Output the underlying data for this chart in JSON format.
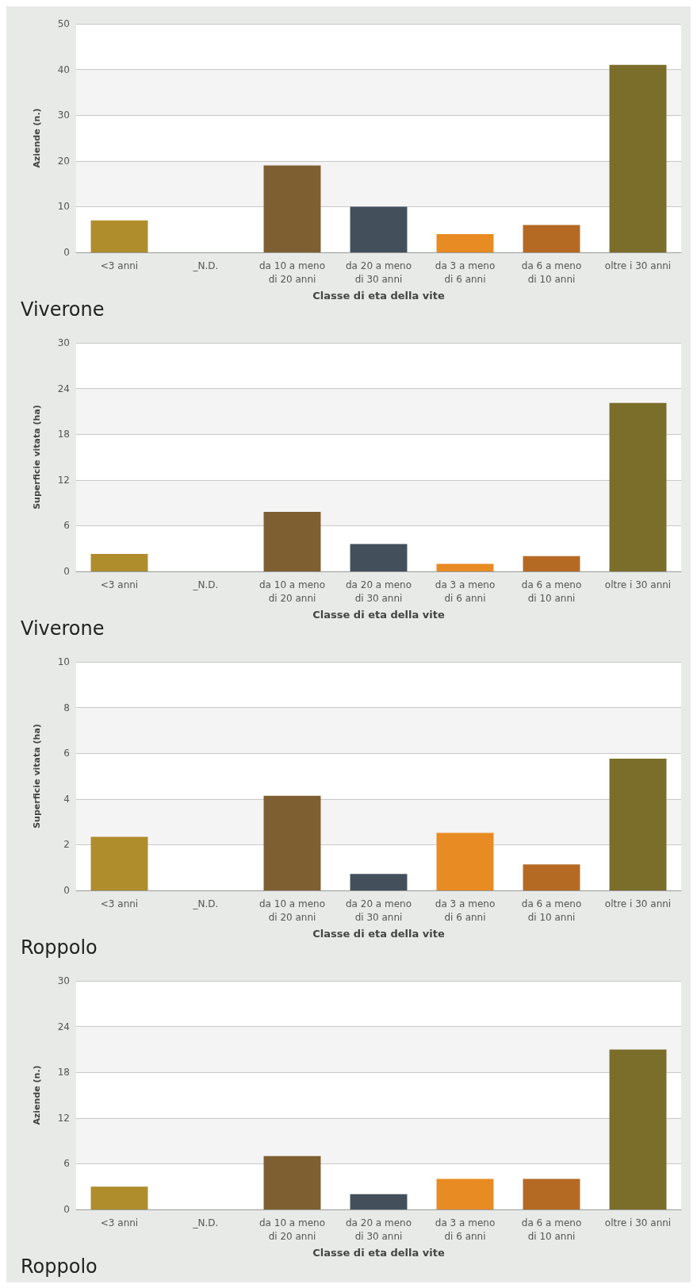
{
  "chart_data": [
    {
      "type": "bar",
      "xlabel": "Classe di eta della vite",
      "ylabel": "Aziende (n.)",
      "annotations": [
        "Viverone"
      ],
      "categories": [
        "<3 anni",
        "_N.D.",
        "da 10 a meno\ndi 20 anni",
        "da 20 a meno\ndi 30 anni",
        "da 3 a meno\ndi 6 anni",
        "da 6 a meno\ndi 10 anni",
        "oltre i 30 anni"
      ],
      "values": [
        7,
        null,
        19,
        10,
        4,
        6,
        41
      ],
      "colors": [
        "#b08d2c",
        "#999999",
        "#7e5f31",
        "#43505c",
        "#e88b22",
        "#b56a24",
        "#7a6e2a"
      ],
      "ylim": [
        0,
        50
      ],
      "yticks": [
        0,
        10,
        20,
        30,
        40,
        50
      ],
      "grid": "y"
    },
    {
      "type": "bar",
      "xlabel": "Classe di eta della vite",
      "ylabel": "Superficie vitata (ha)",
      "annotations": [
        "Viverone"
      ],
      "categories": [
        "<3 anni",
        "_N.D.",
        "da 10 a meno\ndi 20 anni",
        "da 20 a meno\ndi 30 anni",
        "da 3 a meno\ndi 6 anni",
        "da 6 a meno\ndi 10 anni",
        "oltre i 30 anni"
      ],
      "values": [
        2.3,
        null,
        7.8,
        3.6,
        1.0,
        2.0,
        22.1
      ],
      "colors": [
        "#b08d2c",
        "#999999",
        "#7e5f31",
        "#43505c",
        "#e88b22",
        "#b56a24",
        "#7a6e2a"
      ],
      "ylim": [
        0,
        30
      ],
      "yticks": [
        0,
        6,
        12,
        18,
        24,
        30
      ],
      "grid": "y"
    },
    {
      "type": "bar",
      "xlabel": "Classe di eta della vite",
      "ylabel": "Superficie vitata (ha)",
      "annotations": [
        "Roppolo"
      ],
      "categories": [
        "<3 anni",
        "_N.D.",
        "da 10 a meno\ndi 20 anni",
        "da 20 a meno\ndi 30 anni",
        "da 3 a meno\ndi 6 anni",
        "da 6 a meno\ndi 10 anni",
        "oltre i 30 anni"
      ],
      "values": [
        2.34,
        null,
        4.14,
        0.72,
        2.52,
        1.14,
        5.76
      ],
      "colors": [
        "#b08d2c",
        "#999999",
        "#7e5f31",
        "#43505c",
        "#e88b22",
        "#b56a24",
        "#7a6e2a"
      ],
      "ylim": [
        0,
        10
      ],
      "yticks": [
        0,
        2,
        4,
        6,
        8,
        10
      ],
      "grid": "y"
    },
    {
      "type": "bar",
      "xlabel": "Classe di eta della vite",
      "ylabel": "Aziende (n.)",
      "annotations": [
        "Roppolo"
      ],
      "categories": [
        "<3 anni",
        "_N.D.",
        "da 10 a meno\ndi 20 anni",
        "da 20 a meno\ndi 30 anni",
        "da 3 a meno\ndi 6 anni",
        "da 6 a meno\ndi 10 anni",
        "oltre i 30 anni"
      ],
      "values": [
        3,
        null,
        7,
        2,
        4,
        4,
        21
      ],
      "colors": [
        "#b08d2c",
        "#999999",
        "#7e5f31",
        "#43505c",
        "#e88b22",
        "#b56a24",
        "#7a6e2a"
      ],
      "ylim": [
        0,
        30
      ],
      "yticks": [
        0,
        6,
        12,
        18,
        24,
        30
      ],
      "grid": "y"
    }
  ]
}
